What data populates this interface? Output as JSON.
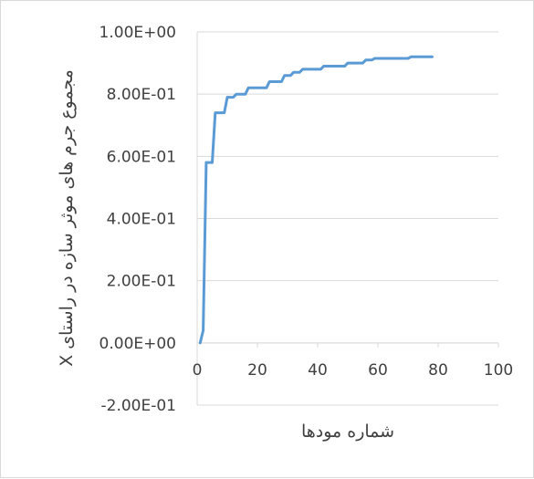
{
  "chart_data": {
    "type": "line",
    "title": "",
    "xlabel": "شماره مودها",
    "ylabel": "مجموع جرم های موثر سازه در راستای X",
    "xlim": [
      0,
      100
    ],
    "ylim": [
      -0.2,
      1.0
    ],
    "x_ticks": [
      0,
      20,
      40,
      60,
      80,
      100
    ],
    "x_tick_labels": [
      "0",
      "20",
      "40",
      "60",
      "80",
      "100"
    ],
    "y_ticks": [
      -0.2,
      0.0,
      0.2,
      0.4,
      0.6,
      0.8,
      1.0
    ],
    "y_tick_labels": [
      "-2.00E-01",
      "0.00E+00",
      "2.00E-01",
      "4.00E-01",
      "6.00E-01",
      "8.00E-01",
      "1.00E+00"
    ],
    "grid": "horizontal",
    "series": [
      {
        "color": "#5b9bd5",
        "x": [
          1,
          2,
          3,
          4,
          5,
          6,
          7,
          8,
          9,
          10,
          11,
          12,
          13,
          14,
          15,
          16,
          17,
          18,
          19,
          20,
          21,
          22,
          23,
          24,
          25,
          26,
          27,
          28,
          29,
          30,
          31,
          32,
          33,
          34,
          35,
          36,
          37,
          38,
          39,
          40,
          41,
          42,
          43,
          44,
          45,
          46,
          47,
          48,
          49,
          50,
          51,
          52,
          53,
          54,
          55,
          56,
          57,
          58,
          59,
          60,
          61,
          62,
          63,
          64,
          65,
          66,
          67,
          68,
          69,
          70,
          71,
          72,
          73,
          74,
          75,
          76,
          77,
          78
        ],
        "y": [
          0.0,
          0.04,
          0.58,
          0.58,
          0.58,
          0.74,
          0.74,
          0.74,
          0.74,
          0.79,
          0.79,
          0.79,
          0.8,
          0.8,
          0.8,
          0.8,
          0.82,
          0.82,
          0.82,
          0.82,
          0.82,
          0.82,
          0.82,
          0.84,
          0.84,
          0.84,
          0.84,
          0.84,
          0.86,
          0.86,
          0.86,
          0.87,
          0.87,
          0.87,
          0.88,
          0.88,
          0.88,
          0.88,
          0.88,
          0.88,
          0.88,
          0.89,
          0.89,
          0.89,
          0.89,
          0.89,
          0.89,
          0.89,
          0.89,
          0.9,
          0.9,
          0.9,
          0.9,
          0.9,
          0.9,
          0.91,
          0.91,
          0.91,
          0.915,
          0.915,
          0.915,
          0.915,
          0.915,
          0.915,
          0.915,
          0.915,
          0.915,
          0.915,
          0.915,
          0.915,
          0.92,
          0.92,
          0.92,
          0.92,
          0.92,
          0.92,
          0.92,
          0.92
        ]
      }
    ]
  },
  "colors": {
    "series_line": "#5b9bd5",
    "gridline": "#d9d9d9",
    "axis_line": "#d9d9d9",
    "text": "#404040"
  }
}
